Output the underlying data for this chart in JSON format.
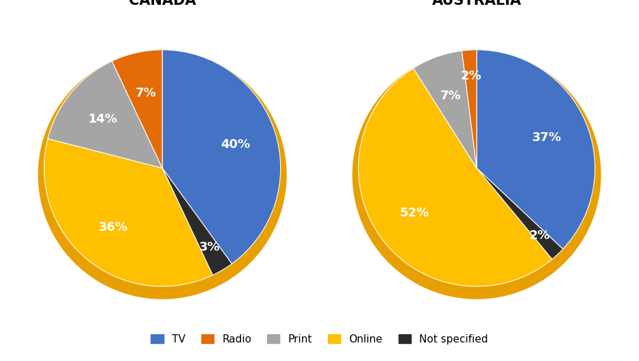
{
  "canada": {
    "title": "CANADA",
    "values": [
      40,
      3,
      36,
      14,
      7
    ],
    "labels": [
      "40%",
      "3%",
      "36%",
      "14%",
      "7%"
    ],
    "categories": [
      "TV",
      "Not specified",
      "Online",
      "Print",
      "Radio"
    ]
  },
  "australia": {
    "title": "AUSTRALIA",
    "values": [
      37,
      2,
      52,
      7,
      2
    ],
    "labels": [
      "37%",
      "2%",
      "52%",
      "7%",
      "2%"
    ],
    "categories": [
      "TV",
      "Not specified",
      "Online",
      "Print",
      "Radio"
    ]
  },
  "colors": [
    "#4472C4",
    "#2B2B2B",
    "#FFC000",
    "#A5A5A5",
    "#E36C09"
  ],
  "legend_labels": [
    "TV",
    "Radio",
    "Print",
    "Online",
    "Not specified"
  ],
  "legend_colors": [
    "#4472C4",
    "#E36C09",
    "#A5A5A5",
    "#FFC000",
    "#2B2B2B"
  ],
  "background_color": "#FFFFFF",
  "shadow_color": "#E8A000",
  "shadow_dark": "#C47A00",
  "title_fontsize": 15,
  "label_fontsize": 13,
  "startangle": 90
}
